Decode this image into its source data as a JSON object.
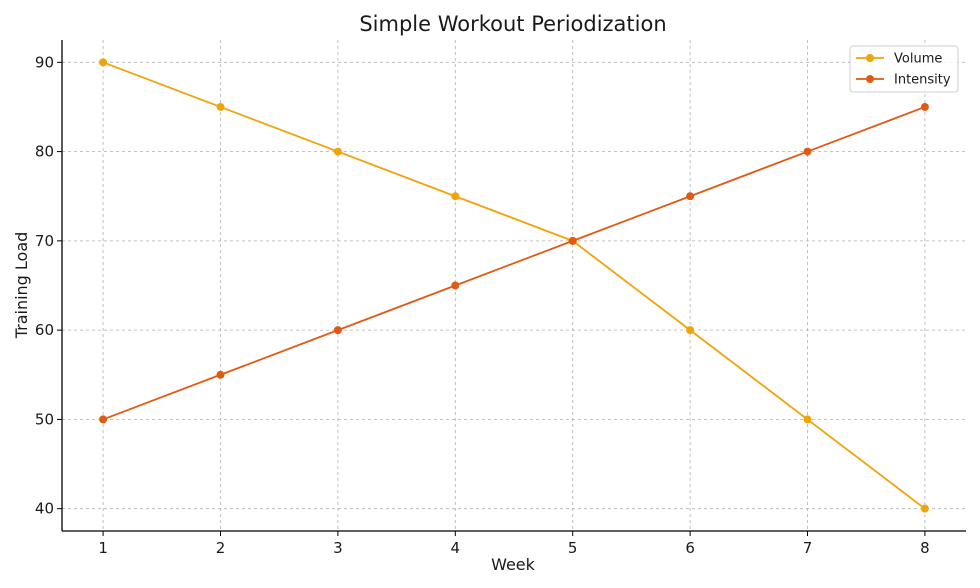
{
  "chart_data": {
    "type": "line",
    "title": "Simple Workout Periodization",
    "xlabel": "Week",
    "ylabel": "Training Load",
    "x": [
      1,
      2,
      3,
      4,
      5,
      6,
      7,
      8
    ],
    "xticks": [
      1,
      2,
      3,
      4,
      5,
      6,
      7,
      8
    ],
    "yticks": [
      40,
      50,
      60,
      70,
      80,
      90
    ],
    "xlim": [
      0.65,
      8.35
    ],
    "ylim": [
      37.5,
      92.5
    ],
    "grid": true,
    "legend_position": "top-right",
    "series": [
      {
        "name": "Volume",
        "values": [
          90,
          85,
          80,
          75,
          70,
          60,
          50,
          40
        ],
        "color": "#f0a30a"
      },
      {
        "name": "Intensity",
        "values": [
          50,
          55,
          60,
          65,
          70,
          75,
          80,
          85
        ],
        "color": "#e05a14"
      }
    ]
  }
}
